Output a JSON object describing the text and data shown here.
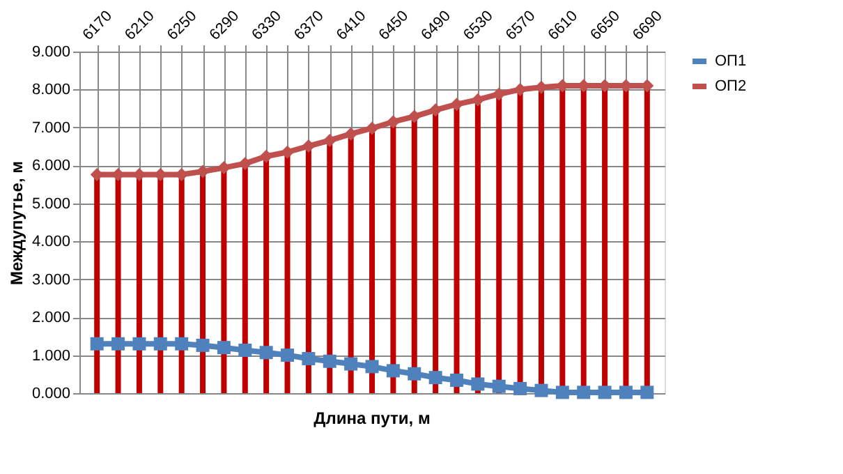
{
  "chart_data": {
    "type": "line",
    "xlabel": "Длина пути, м",
    "ylabel": "Междупутье, м",
    "categories": [
      "6170",
      null,
      "6210",
      null,
      "6250",
      null,
      "6290",
      null,
      "6330",
      null,
      "6370",
      null,
      "6410",
      null,
      "6450",
      null,
      "6490",
      null,
      "6530",
      null,
      "6570",
      null,
      "6610",
      null,
      "6650",
      null,
      "6690"
    ],
    "series": [
      {
        "type": "bar",
        "color": "#c00000",
        "values": [
          5.76,
          5.76,
          5.76,
          5.76,
          5.76,
          5.84,
          5.94,
          6.05,
          6.24,
          6.35,
          6.51,
          6.66,
          6.83,
          6.98,
          7.15,
          7.29,
          7.46,
          7.61,
          7.73,
          7.88,
          8.0,
          8.06,
          8.1,
          8.1,
          8.1,
          8.1,
          8.1
        ]
      },
      {
        "name": "ОП1",
        "type": "line",
        "color": "#4f81bd",
        "marker": "square",
        "values": [
          1.3,
          1.3,
          1.3,
          1.3,
          1.3,
          1.26,
          1.2,
          1.13,
          1.07,
          1.0,
          0.91,
          0.84,
          0.77,
          0.7,
          0.59,
          0.51,
          0.41,
          0.34,
          0.24,
          0.18,
          0.12,
          0.07,
          0.02,
          0.02,
          0.02,
          0.02,
          0.02
        ]
      },
      {
        "name": "ОП2",
        "type": "line",
        "color": "#c0504d",
        "marker": "diamond",
        "values": [
          5.76,
          5.76,
          5.76,
          5.76,
          5.76,
          5.84,
          5.94,
          6.05,
          6.24,
          6.35,
          6.51,
          6.66,
          6.83,
          6.98,
          7.15,
          7.29,
          7.46,
          7.61,
          7.73,
          7.88,
          8.0,
          8.06,
          8.1,
          8.1,
          8.1,
          8.1,
          8.1
        ]
      }
    ],
    "ylim": [
      0,
      9
    ],
    "yticks": [
      {
        "value": 0,
        "label": "0.000"
      },
      {
        "value": 1,
        "label": "1.000"
      },
      {
        "value": 2,
        "label": "2.000"
      },
      {
        "value": 3,
        "label": "3.000"
      },
      {
        "value": 4,
        "label": "4.000"
      },
      {
        "value": 5,
        "label": "5.000"
      },
      {
        "value": 6,
        "label": "6.000"
      },
      {
        "value": 7,
        "label": "7.000"
      },
      {
        "value": 8,
        "label": "8.000"
      },
      {
        "value": 9,
        "label": "9.000"
      }
    ],
    "grid": true,
    "legend": "right"
  }
}
